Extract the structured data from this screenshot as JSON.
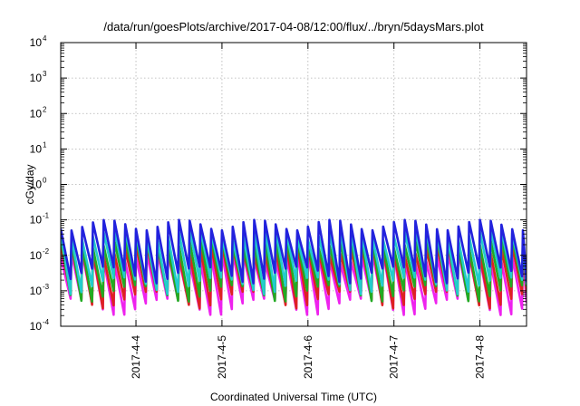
{
  "chart_data": {
    "type": "line",
    "title": "/data/run/goesPlots/archive/2017-04-08/12:00/flux/../bryn/5daysMars.plot",
    "xlabel": "Coordinated Universal Time (UTC)",
    "ylabel": "cGy/day",
    "y_scale": "log",
    "ylim": [
      0.0001,
      10000
    ],
    "yticks": [
      {
        "base": "10",
        "exp": "4"
      },
      {
        "base": "10",
        "exp": "3"
      },
      {
        "base": "10",
        "exp": "2"
      },
      {
        "base": "10",
        "exp": "1"
      },
      {
        "base": "10",
        "exp": "0"
      },
      {
        "base": "10",
        "exp": "-1"
      },
      {
        "base": "10",
        "exp": "-2"
      },
      {
        "base": "10",
        "exp": "-3"
      },
      {
        "base": "10",
        "exp": "-4"
      }
    ],
    "xlim": [
      "2017-04-03T03:00",
      "2017-04-08T13:00"
    ],
    "xticks": [
      "2017-4-4",
      "2017-4-5",
      "2017-4-6",
      "2017-4-7",
      "2017-4-8"
    ],
    "grid": true,
    "sawtooth": {
      "period_hours": 3,
      "series": [
        {
          "color": "#2222dd",
          "peak": 0.1,
          "trough": 0.004
        },
        {
          "color": "#22cccc",
          "peak": 0.055,
          "trough": 0.002
        },
        {
          "color": "#22aa22",
          "peak": 0.032,
          "trough": 0.0012
        },
        {
          "color": "#dd2222",
          "peak": 0.02,
          "trough": 0.0008
        },
        {
          "color": "#ee22ee",
          "peak": 0.012,
          "trough": 0.0005
        }
      ]
    }
  }
}
